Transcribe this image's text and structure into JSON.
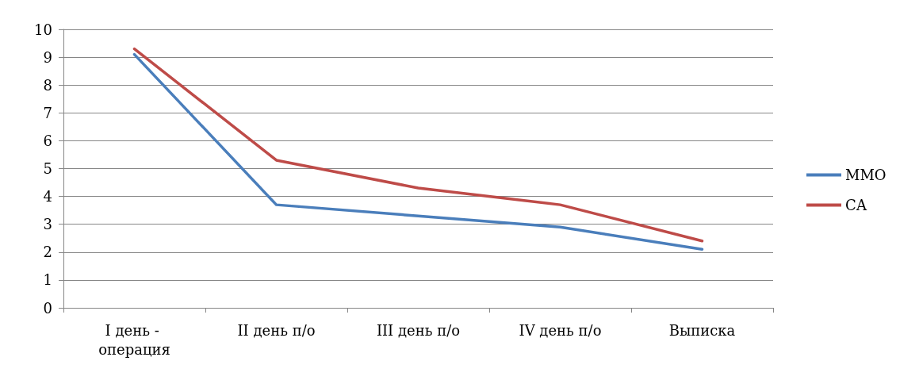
{
  "chart_data": {
    "type": "line",
    "categories": [
      "I день - операция",
      "II день п/о",
      "III день п/о",
      "IV день п/о",
      "Выписка"
    ],
    "series": [
      {
        "name": "ММО",
        "color": "#4a7ebb",
        "values": [
          9.1,
          3.7,
          3.3,
          2.9,
          2.1
        ]
      },
      {
        "name": "СА",
        "color": "#be4b48",
        "values": [
          9.3,
          5.3,
          4.3,
          3.7,
          2.4
        ]
      }
    ],
    "ylim": [
      0,
      10
    ],
    "yticks": [
      0,
      1,
      2,
      3,
      4,
      5,
      6,
      7,
      8,
      9,
      10
    ],
    "grid": "y",
    "legend": "right",
    "marker": "none",
    "line_style": "solid"
  }
}
